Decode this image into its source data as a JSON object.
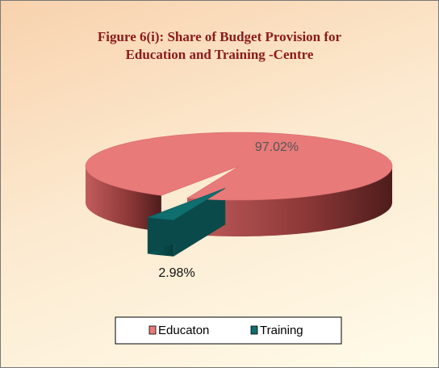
{
  "chart_data": {
    "type": "pie",
    "title": "Figure 6(i): Share of Budget Provision for Education and Training -Centre",
    "categories": [
      "Educaton",
      "Training"
    ],
    "values": [
      97.02,
      2.98
    ],
    "value_labels": [
      "97.02%",
      "2.98%"
    ],
    "colors": [
      "#e87a7a",
      "#0f6e6e"
    ],
    "legend": "bottom"
  }
}
